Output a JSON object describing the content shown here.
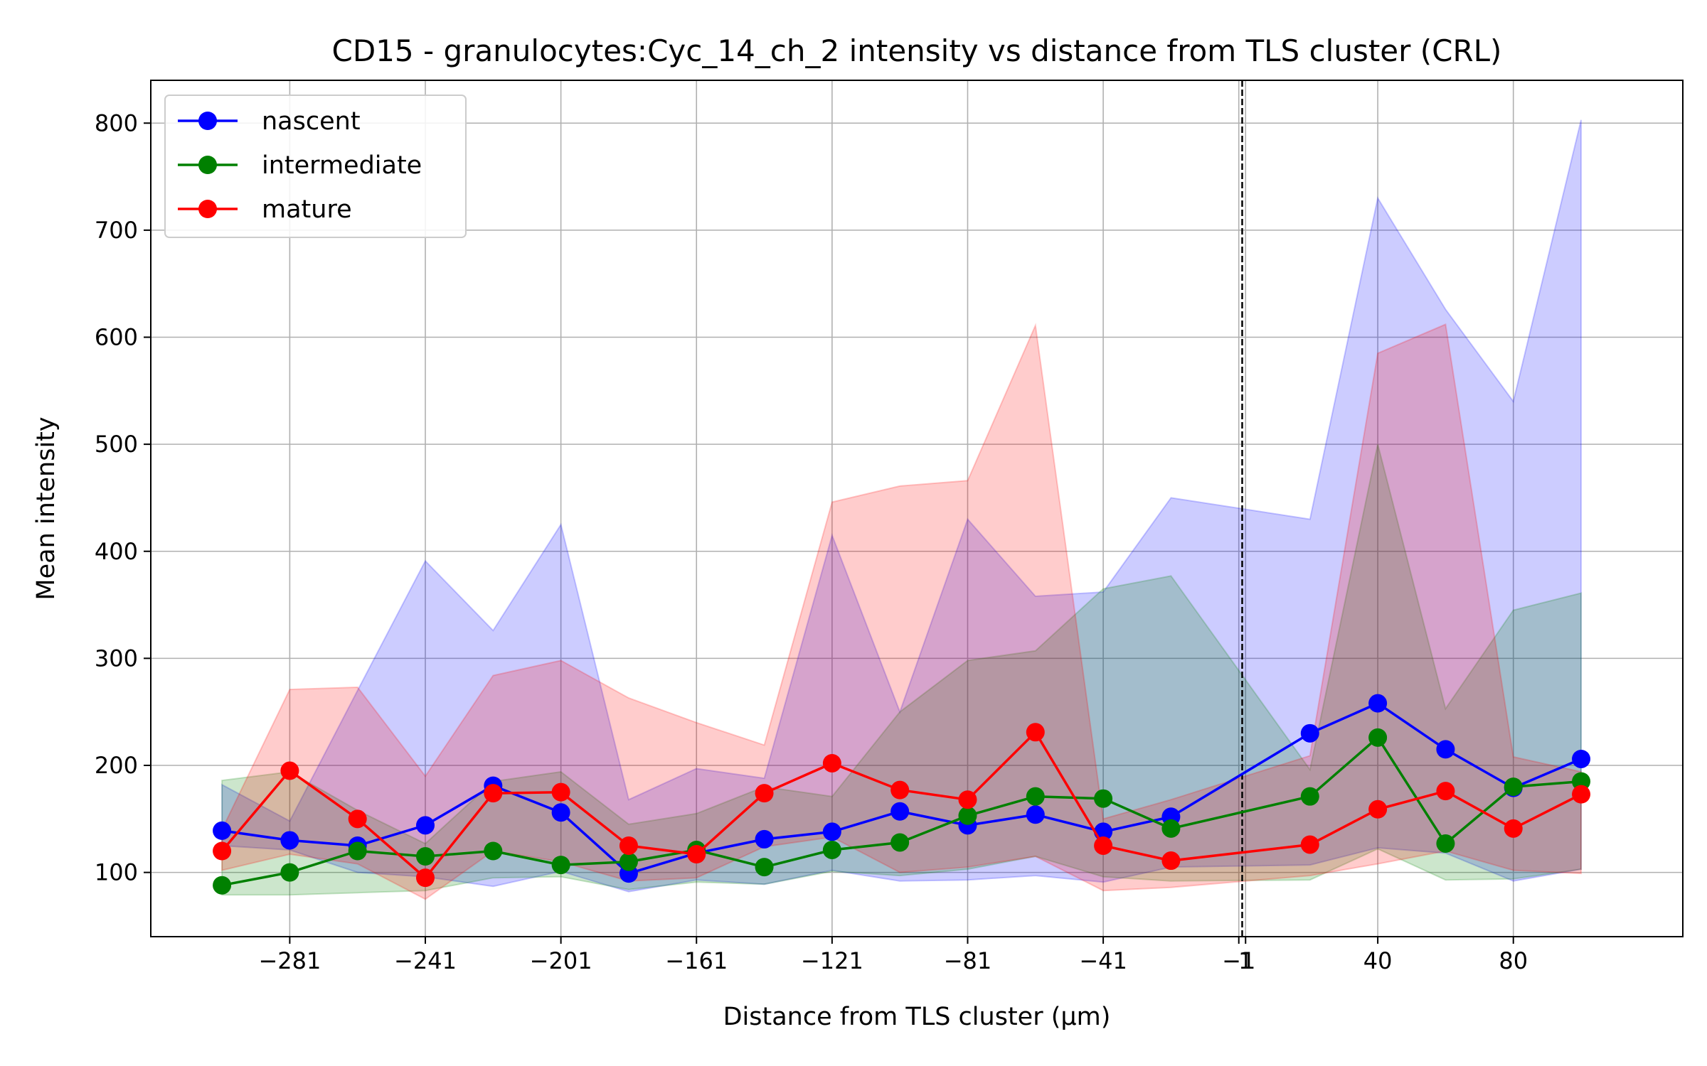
{
  "chart_data": {
    "type": "line",
    "title": "CD15 - granulocytes:Cyc_14_ch_2 intensity vs distance from TLS cluster (CRL)",
    "xlabel": "Distance from TLS cluster (μm)",
    "ylabel": "Mean intensity",
    "xlim": [
      -322,
      130
    ],
    "ylim": [
      40,
      840
    ],
    "xticks": [
      -281,
      -241,
      -201,
      -161,
      -121,
      -81,
      -41,
      -1,
      1,
      40,
      80
    ],
    "xtick_labels": [
      "−281",
      "−241",
      "−201",
      "−161",
      "−121",
      "−81",
      "−41",
      "−1",
      "1",
      "40",
      "80"
    ],
    "yticks": [
      100,
      200,
      300,
      400,
      500,
      600,
      700,
      800
    ],
    "ytick_labels": [
      "100",
      "200",
      "300",
      "400",
      "500",
      "600",
      "700",
      "800"
    ],
    "grid": true,
    "legend_position": "upper-left",
    "reference_line": {
      "x": 0,
      "style": "dashed",
      "color": "#000000"
    },
    "series": [
      {
        "name": "nascent",
        "color": "#0000ff",
        "x": [
          -301,
          -281,
          -261,
          -241,
          -221,
          -201,
          -181,
          -161,
          -141,
          -121,
          -101,
          -81,
          -61,
          -41,
          -21,
          20,
          40,
          60,
          80,
          100
        ],
        "y": [
          139,
          130,
          125,
          144,
          181,
          156,
          99,
          118,
          131,
          138,
          157,
          144,
          154,
          138,
          152,
          230,
          258,
          215,
          179,
          206
        ],
        "band_upper": [
          182,
          148,
          270,
          391,
          326,
          425,
          168,
          197,
          188,
          415,
          250,
          430,
          358,
          362,
          450,
          430,
          730,
          626,
          540,
          803
        ],
        "band_lower": [
          125,
          121,
          100,
          96,
          87,
          101,
          82,
          93,
          89,
          102,
          92,
          93,
          97,
          91,
          105,
          107,
          123,
          118,
          92,
          103
        ]
      },
      {
        "name": "intermediate",
        "color": "#008000",
        "x": [
          -301,
          -281,
          -261,
          -241,
          -221,
          -201,
          -181,
          -161,
          -141,
          -121,
          -101,
          -81,
          -61,
          -41,
          -21,
          20,
          40,
          60,
          80,
          100
        ],
        "y": [
          88,
          100,
          120,
          115,
          120,
          107,
          110,
          121,
          105,
          121,
          128,
          153,
          171,
          169,
          141,
          171,
          226,
          127,
          180,
          185
        ],
        "band_upper": [
          186,
          194,
          158,
          127,
          185,
          194,
          145,
          155,
          180,
          171,
          250,
          298,
          307,
          365,
          377,
          196,
          500,
          253,
          345,
          361
        ],
        "band_lower": [
          79,
          79,
          81,
          83,
          95,
          96,
          84,
          91,
          89,
          101,
          97,
          103,
          115,
          96,
          92,
          93,
          122,
          93,
          94,
          103
        ]
      },
      {
        "name": "mature",
        "color": "#ff0000",
        "x": [
          -301,
          -281,
          -261,
          -241,
          -221,
          -201,
          -181,
          -161,
          -141,
          -121,
          -101,
          -81,
          -61,
          -41,
          -21,
          20,
          40,
          60,
          80,
          100
        ],
        "y": [
          120,
          195,
          150,
          95,
          174,
          175,
          125,
          117,
          174,
          202,
          177,
          168,
          231,
          125,
          111,
          126,
          159,
          176,
          141,
          173
        ],
        "band_upper": [
          140,
          271,
          273,
          190,
          284,
          298,
          263,
          240,
          219,
          446,
          461,
          466,
          611,
          150,
          168,
          209,
          585,
          612,
          208,
          194
        ],
        "band_lower": [
          102,
          117,
          108,
          75,
          120,
          110,
          92,
          95,
          124,
          133,
          100,
          105,
          115,
          83,
          86,
          97,
          108,
          120,
          102,
          99
        ]
      }
    ]
  }
}
